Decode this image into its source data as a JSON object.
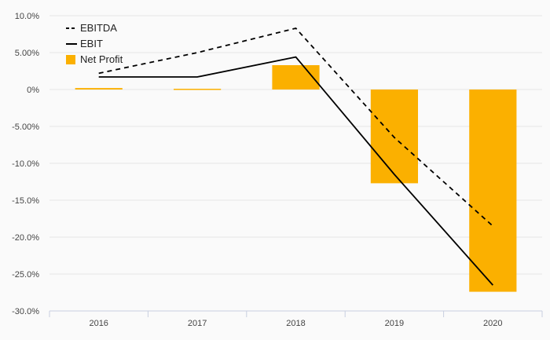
{
  "chart_data": {
    "type": "bar",
    "title": "",
    "xlabel": "",
    "ylabel": "",
    "categories": [
      "2016",
      "2017",
      "2018",
      "2019",
      "2020"
    ],
    "ylim": [
      -30,
      10
    ],
    "yticks": [
      10,
      5,
      0,
      -5,
      -10,
      -15,
      -20,
      -25,
      -30
    ],
    "ytick_labels": [
      "10.0%",
      "5.00%",
      "0%",
      "-5.00%",
      "-10.0%",
      "-15.0%",
      "-20.0%",
      "-25.0%",
      "-30.0%"
    ],
    "grid": true,
    "legend_position": "top-left",
    "series": [
      {
        "name": "EBITDA",
        "kind": "line",
        "style": "dashed",
        "color": "#000000",
        "values": [
          2.2,
          5.0,
          8.3,
          -6.5,
          -18.5
        ]
      },
      {
        "name": "EBIT",
        "kind": "line",
        "style": "solid",
        "color": "#000000",
        "values": [
          1.7,
          1.7,
          4.4,
          -11.5,
          -26.5
        ]
      },
      {
        "name": "Net Profit",
        "kind": "bar",
        "color": "#fbb000",
        "values": [
          0.2,
          0.1,
          3.3,
          -12.7,
          -27.4
        ]
      }
    ]
  }
}
